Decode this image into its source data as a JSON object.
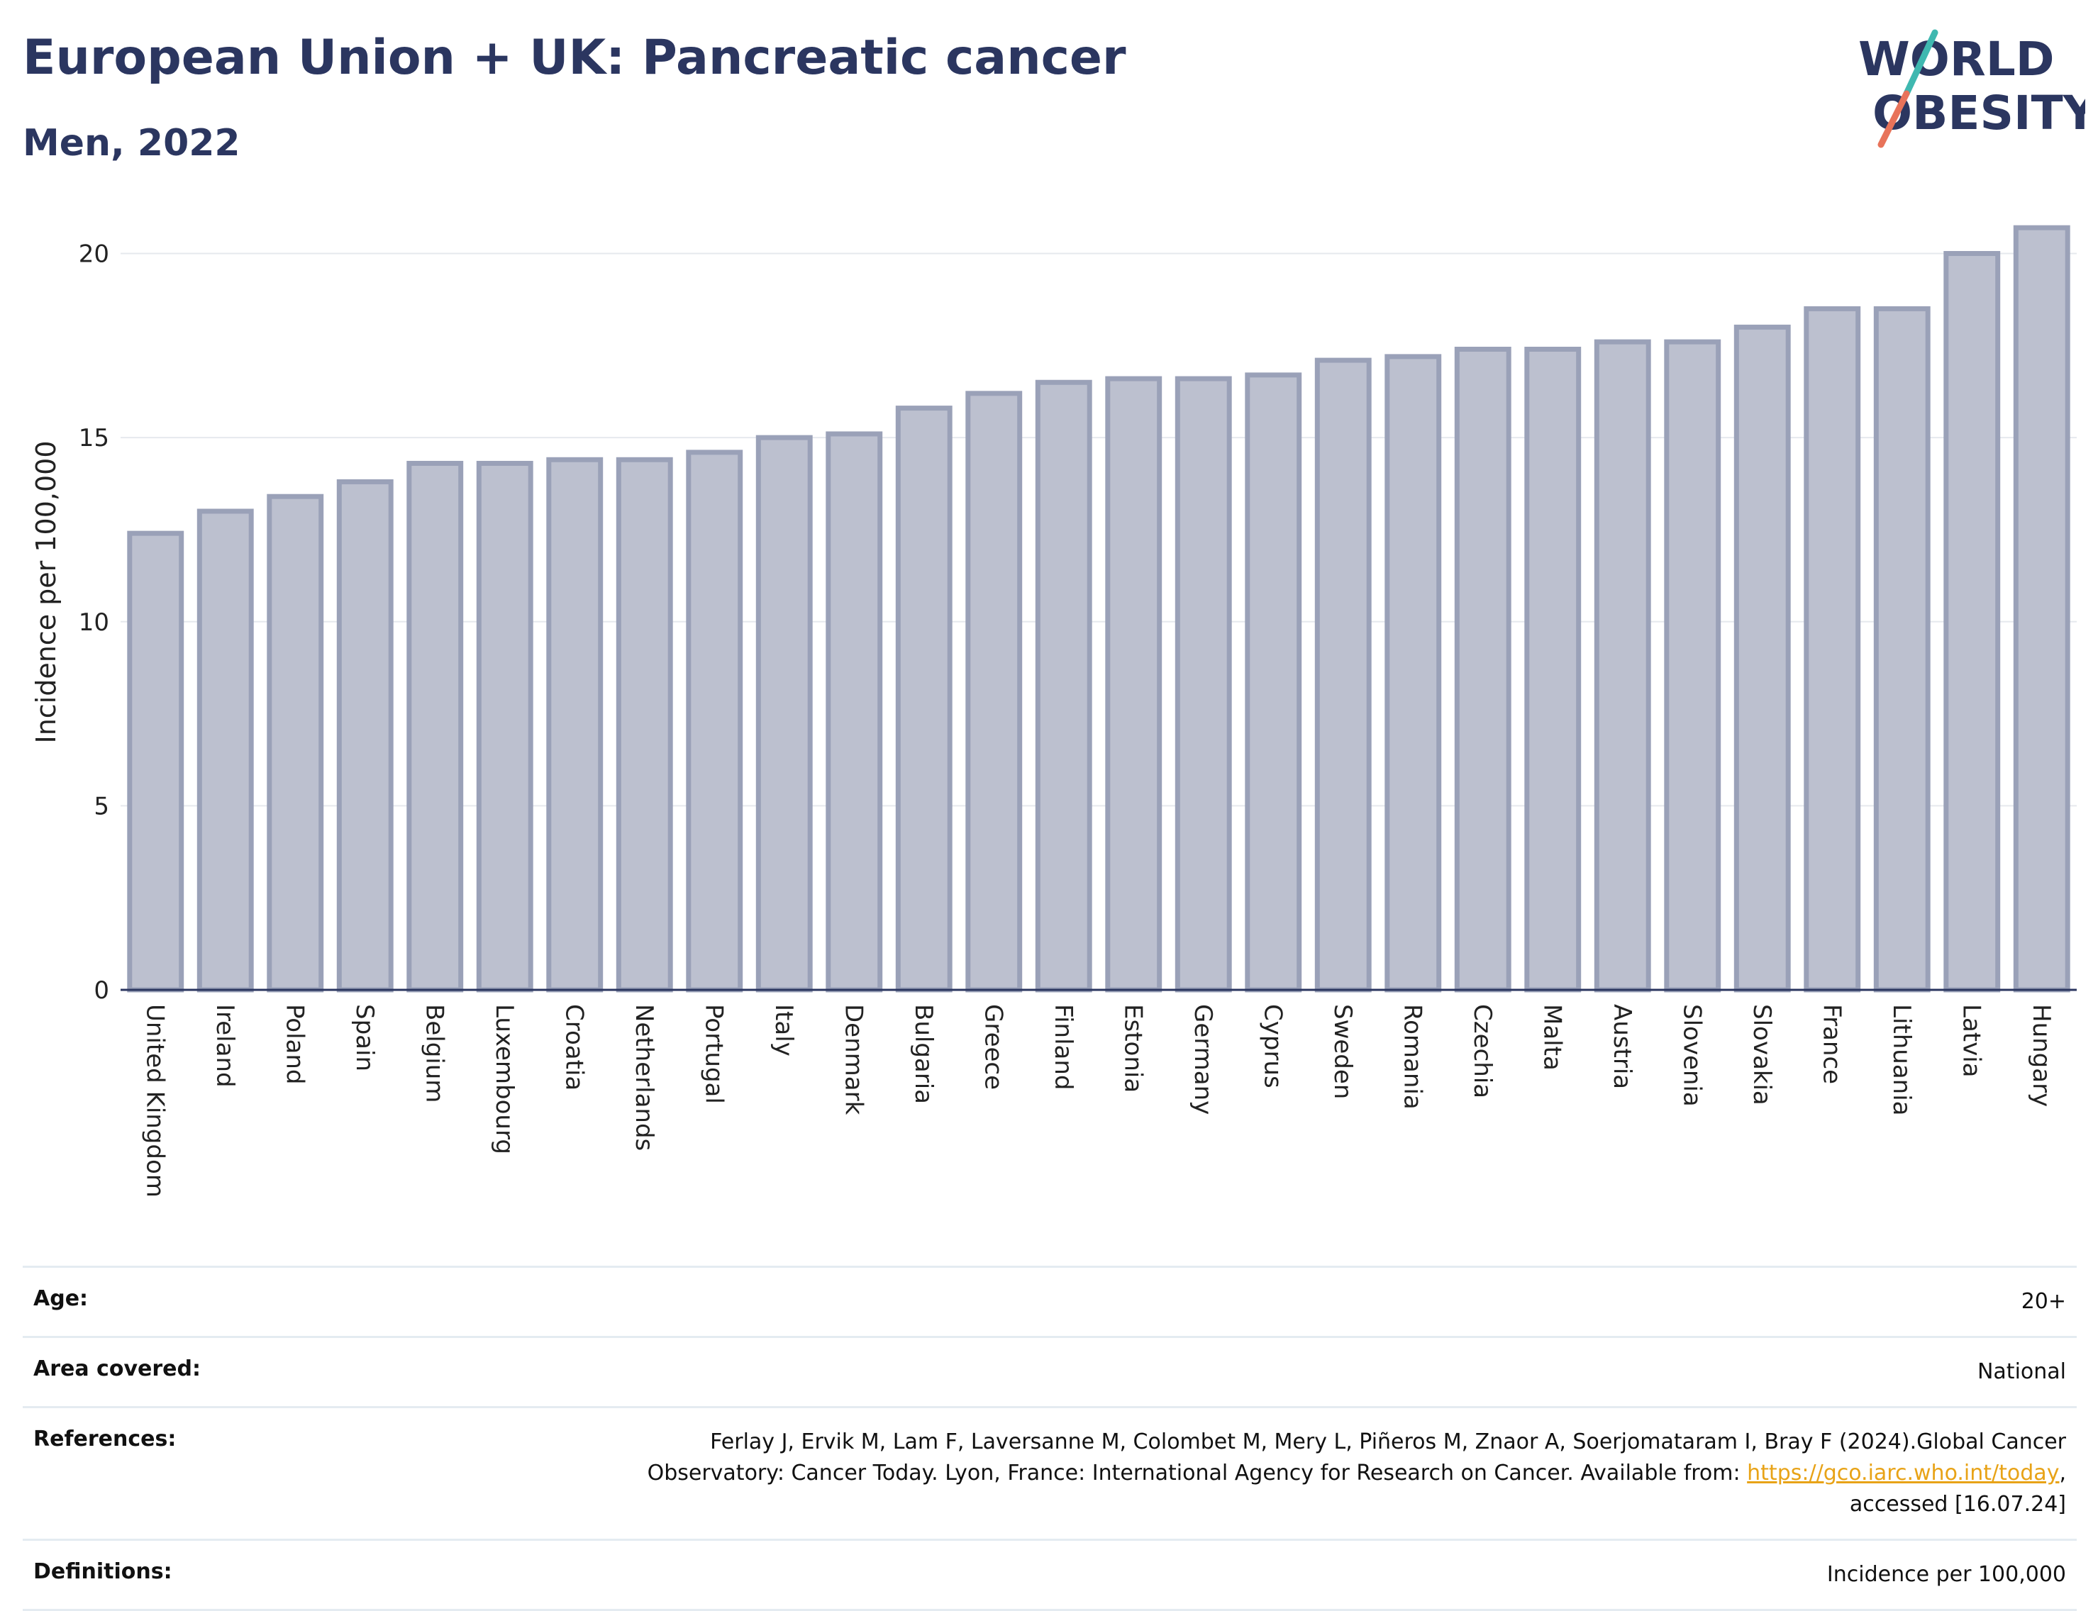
{
  "header": {
    "title": "European Union + UK: Pancreatic cancer",
    "subtitle": "Men, 2022",
    "logo_line1": "WORLD",
    "logo_line2": "OBESITY"
  },
  "chart_data": {
    "type": "bar",
    "categories": [
      "United Kingdom",
      "Ireland",
      "Poland",
      "Spain",
      "Belgium",
      "Luxembourg",
      "Croatia",
      "Netherlands",
      "Portugal",
      "Italy",
      "Denmark",
      "Bulgaria",
      "Greece",
      "Finland",
      "Estonia",
      "Germany",
      "Cyprus",
      "Sweden",
      "Romania",
      "Czechia",
      "Malta",
      "Austria",
      "Slovenia",
      "Slovakia",
      "France",
      "Lithuania",
      "Latvia",
      "Hungary"
    ],
    "values": [
      12.4,
      13.0,
      13.4,
      13.8,
      14.3,
      14.3,
      14.4,
      14.4,
      14.6,
      15.0,
      15.1,
      15.8,
      16.2,
      16.5,
      16.6,
      16.6,
      16.7,
      17.1,
      17.2,
      17.4,
      17.4,
      17.6,
      17.6,
      18.0,
      18.5,
      18.5,
      20.0,
      20.7
    ],
    "ylabel": "Incidence per 100,000",
    "xlabel": "",
    "ylim": [
      0,
      21.3
    ],
    "yticks": [
      0,
      5,
      10,
      15,
      20
    ],
    "grid": true,
    "colors": {
      "bar_fill": "#bcc0cf",
      "bar_stroke": "#9aa1b8",
      "grid": "#e6e9ee",
      "axis": "#2b3660"
    }
  },
  "meta": {
    "age_label": "Age:",
    "age_value": "20+",
    "area_label": "Area covered:",
    "area_value": "National",
    "references_label": "References:",
    "references_text_1": "Ferlay J, Ervik M, Lam F, Laversanne M, Colombet M, Mery L, Piñeros M, Znaor A, Soerjomataram I, Bray F (2024).Global Cancer",
    "references_text_2": "Observatory: Cancer Today. Lyon, France: International Agency for Research on Cancer. Available from: ",
    "references_link": "https://gco.iarc.who.int/today",
    "references_text_3": ",",
    "references_text_4": "accessed [16.07.24]",
    "definitions_label": "Definitions:",
    "definitions_value": "Incidence per 100,000"
  }
}
